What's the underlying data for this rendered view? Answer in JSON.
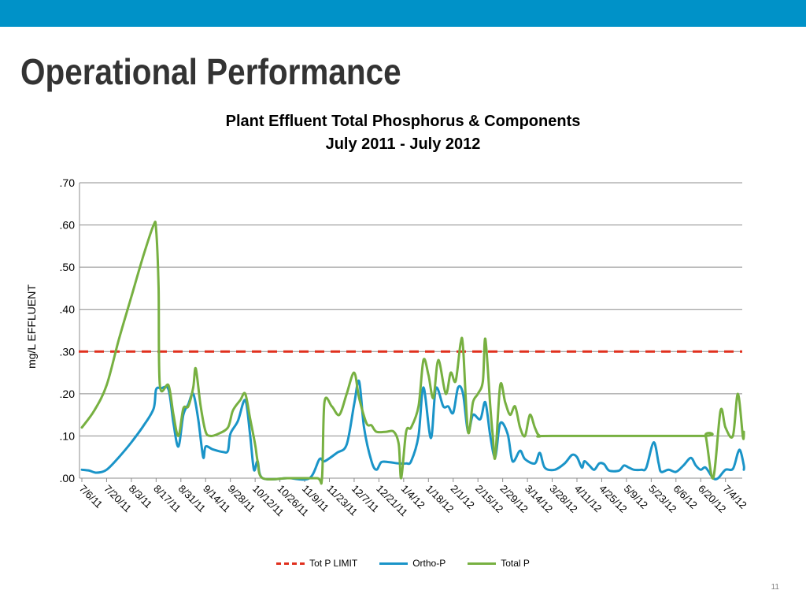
{
  "slide": {
    "title": "Operational Performance",
    "page_number": "11",
    "accent_color": "#0092c8"
  },
  "chart_data": {
    "type": "line",
    "title": "Plant Effluent Total Phosphorus & Components",
    "subtitle": "July 2011 - July 2012",
    "xlabel": "",
    "ylabel": "mg/L EFFLUENT",
    "ylim": [
      0,
      0.7
    ],
    "yticks": [
      ".00",
      ".10",
      ".20",
      ".30",
      ".40",
      ".50",
      ".60",
      ".70"
    ],
    "grid": true,
    "legend_position": "bottom",
    "categories": [
      "7/6/11",
      "7/20/11",
      "8/3/11",
      "8/17/11",
      "8/31/11",
      "9/14/11",
      "9/28/11",
      "10/12/11",
      "10/26/11",
      "11/9/11",
      "11/23/11",
      "12/7/11",
      "12/21/11",
      "1/4/12",
      "1/18/12",
      "2/1/12",
      "2/15/12",
      "2/29/12",
      "3/14/12",
      "3/28/12",
      "4/11/12",
      "4/25/12",
      "5/9/12",
      "5/23/12",
      "6/6/12",
      "6/20/12",
      "7/4/12"
    ],
    "series": [
      {
        "name": "Tot P LIMIT",
        "color": "#e0301e",
        "style": "dashed",
        "points": [
          [
            0,
            0.3
          ],
          [
            26.6,
            0.3
          ]
        ]
      },
      {
        "name": "Ortho-P",
        "color": "#1a94c8",
        "style": "solid",
        "points": [
          [
            0,
            0.02
          ],
          [
            0.3,
            0.018
          ],
          [
            0.6,
            0.013
          ],
          [
            1.0,
            0.02
          ],
          [
            1.5,
            0.05
          ],
          [
            2.0,
            0.085
          ],
          [
            2.5,
            0.125
          ],
          [
            2.9,
            0.165
          ],
          [
            3.0,
            0.21
          ],
          [
            3.2,
            0.213
          ],
          [
            3.5,
            0.21
          ],
          [
            3.7,
            0.13
          ],
          [
            3.9,
            0.075
          ],
          [
            4.1,
            0.15
          ],
          [
            4.3,
            0.175
          ],
          [
            4.5,
            0.2
          ],
          [
            4.7,
            0.14
          ],
          [
            4.9,
            0.05
          ],
          [
            5.0,
            0.075
          ],
          [
            5.3,
            0.068
          ],
          [
            5.7,
            0.062
          ],
          [
            5.9,
            0.065
          ],
          [
            6.0,
            0.105
          ],
          [
            6.3,
            0.135
          ],
          [
            6.6,
            0.185
          ],
          [
            6.8,
            0.1
          ],
          [
            6.95,
            0.02
          ],
          [
            7.1,
            0.04
          ],
          [
            7.3,
            0.0
          ],
          [
            8.3,
            0.0
          ],
          [
            8.4,
            0.0
          ],
          [
            9.2,
            0.0
          ],
          [
            9.6,
            0.045
          ],
          [
            9.8,
            0.04
          ],
          [
            10.3,
            0.06
          ],
          [
            10.7,
            0.08
          ],
          [
            11.0,
            0.175
          ],
          [
            11.2,
            0.23
          ],
          [
            11.4,
            0.12
          ],
          [
            11.7,
            0.04
          ],
          [
            11.9,
            0.02
          ],
          [
            12.1,
            0.038
          ],
          [
            12.4,
            0.038
          ],
          [
            12.8,
            0.035
          ],
          [
            13.1,
            0.035
          ],
          [
            13.3,
            0.04
          ],
          [
            13.6,
            0.1
          ],
          [
            13.8,
            0.215
          ],
          [
            14.1,
            0.095
          ],
          [
            14.3,
            0.213
          ],
          [
            14.6,
            0.17
          ],
          [
            14.8,
            0.17
          ],
          [
            15.0,
            0.155
          ],
          [
            15.2,
            0.215
          ],
          [
            15.4,
            0.2
          ],
          [
            15.6,
            0.11
          ],
          [
            15.8,
            0.15
          ],
          [
            16.1,
            0.14
          ],
          [
            16.3,
            0.18
          ],
          [
            16.5,
            0.1
          ],
          [
            16.7,
            0.05
          ],
          [
            16.9,
            0.13
          ],
          [
            17.2,
            0.105
          ],
          [
            17.4,
            0.04
          ],
          [
            17.7,
            0.065
          ],
          [
            17.9,
            0.045
          ],
          [
            18.3,
            0.035
          ],
          [
            18.5,
            0.06
          ],
          [
            18.7,
            0.025
          ],
          [
            19.1,
            0.02
          ],
          [
            19.5,
            0.035
          ],
          [
            19.8,
            0.055
          ],
          [
            20.0,
            0.05
          ],
          [
            20.2,
            0.025
          ],
          [
            20.3,
            0.04
          ],
          [
            20.5,
            0.03
          ],
          [
            20.7,
            0.02
          ],
          [
            20.9,
            0.035
          ],
          [
            21.1,
            0.033
          ],
          [
            21.3,
            0.018
          ],
          [
            21.7,
            0.018
          ],
          [
            21.9,
            0.03
          ],
          [
            22.1,
            0.025
          ],
          [
            22.3,
            0.02
          ],
          [
            22.6,
            0.02
          ],
          [
            22.8,
            0.025
          ],
          [
            23.1,
            0.085
          ],
          [
            23.3,
            0.035
          ],
          [
            23.4,
            0.015
          ],
          [
            23.7,
            0.02
          ],
          [
            24.0,
            0.015
          ],
          [
            24.3,
            0.03
          ],
          [
            24.6,
            0.048
          ],
          [
            24.8,
            0.03
          ],
          [
            25.0,
            0.02
          ],
          [
            25.2,
            0.025
          ],
          [
            25.5,
            0.0
          ],
          [
            25.7,
            0.0
          ],
          [
            26.0,
            0.02
          ],
          [
            26.3,
            0.022
          ],
          [
            26.5,
            0.06
          ],
          [
            26.6,
            0.065
          ],
          [
            26.9,
            0.03
          ],
          [
            27.0,
            0.02
          ]
        ]
      },
      {
        "name": "Total P",
        "color": "#77b041",
        "style": "solid",
        "points": [
          [
            0,
            0.12
          ],
          [
            0.5,
            0.16
          ],
          [
            1.0,
            0.22
          ],
          [
            1.5,
            0.33
          ],
          [
            2.0,
            0.43
          ],
          [
            2.5,
            0.53
          ],
          [
            2.9,
            0.6
          ],
          [
            3.0,
            0.59
          ],
          [
            3.1,
            0.45
          ],
          [
            3.15,
            0.22
          ],
          [
            3.5,
            0.22
          ],
          [
            3.7,
            0.15
          ],
          [
            3.9,
            0.1
          ],
          [
            4.1,
            0.165
          ],
          [
            4.3,
            0.17
          ],
          [
            4.5,
            0.215
          ],
          [
            4.6,
            0.26
          ],
          [
            4.8,
            0.17
          ],
          [
            5.0,
            0.11
          ],
          [
            5.2,
            0.1
          ],
          [
            5.5,
            0.105
          ],
          [
            5.9,
            0.12
          ],
          [
            6.1,
            0.16
          ],
          [
            6.4,
            0.185
          ],
          [
            6.6,
            0.2
          ],
          [
            6.8,
            0.14
          ],
          [
            7.0,
            0.08
          ],
          [
            7.1,
            0.04
          ],
          [
            7.3,
            0.0
          ],
          [
            8.3,
            0.0
          ],
          [
            8.4,
            0.0
          ],
          [
            9.5,
            0.0
          ],
          [
            9.7,
            0.0
          ],
          [
            9.8,
            0.18
          ],
          [
            10.1,
            0.17
          ],
          [
            10.4,
            0.15
          ],
          [
            10.7,
            0.2
          ],
          [
            11.0,
            0.25
          ],
          [
            11.2,
            0.19
          ],
          [
            11.5,
            0.13
          ],
          [
            11.7,
            0.125
          ],
          [
            11.9,
            0.11
          ],
          [
            12.3,
            0.11
          ],
          [
            12.6,
            0.11
          ],
          [
            12.8,
            0.08
          ],
          [
            12.9,
            0.0
          ],
          [
            13.1,
            0.11
          ],
          [
            13.3,
            0.12
          ],
          [
            13.6,
            0.17
          ],
          [
            13.8,
            0.28
          ],
          [
            14.0,
            0.245
          ],
          [
            14.2,
            0.19
          ],
          [
            14.4,
            0.28
          ],
          [
            14.7,
            0.2
          ],
          [
            14.9,
            0.25
          ],
          [
            15.1,
            0.23
          ],
          [
            15.3,
            0.32
          ],
          [
            15.4,
            0.31
          ],
          [
            15.6,
            0.11
          ],
          [
            15.8,
            0.18
          ],
          [
            16.0,
            0.2
          ],
          [
            16.2,
            0.23
          ],
          [
            16.3,
            0.33
          ],
          [
            16.5,
            0.17
          ],
          [
            16.6,
            0.1
          ],
          [
            16.7,
            0.05
          ],
          [
            16.9,
            0.22
          ],
          [
            17.1,
            0.18
          ],
          [
            17.3,
            0.15
          ],
          [
            17.5,
            0.17
          ],
          [
            17.7,
            0.12
          ],
          [
            17.9,
            0.1
          ],
          [
            18.1,
            0.15
          ],
          [
            18.3,
            0.12
          ],
          [
            18.5,
            0.1
          ],
          [
            19.0,
            0.1
          ],
          [
            25.0,
            0.1
          ],
          [
            25.2,
            0.1
          ],
          [
            25.5,
            0.0
          ],
          [
            25.8,
            0.16
          ],
          [
            26.0,
            0.12
          ],
          [
            26.3,
            0.1
          ],
          [
            26.5,
            0.2
          ],
          [
            26.7,
            0.1
          ],
          [
            27.0,
            0.1
          ],
          [
            27.2,
            0.1
          ],
          [
            27.4,
            0.11
          ]
        ]
      }
    ]
  }
}
